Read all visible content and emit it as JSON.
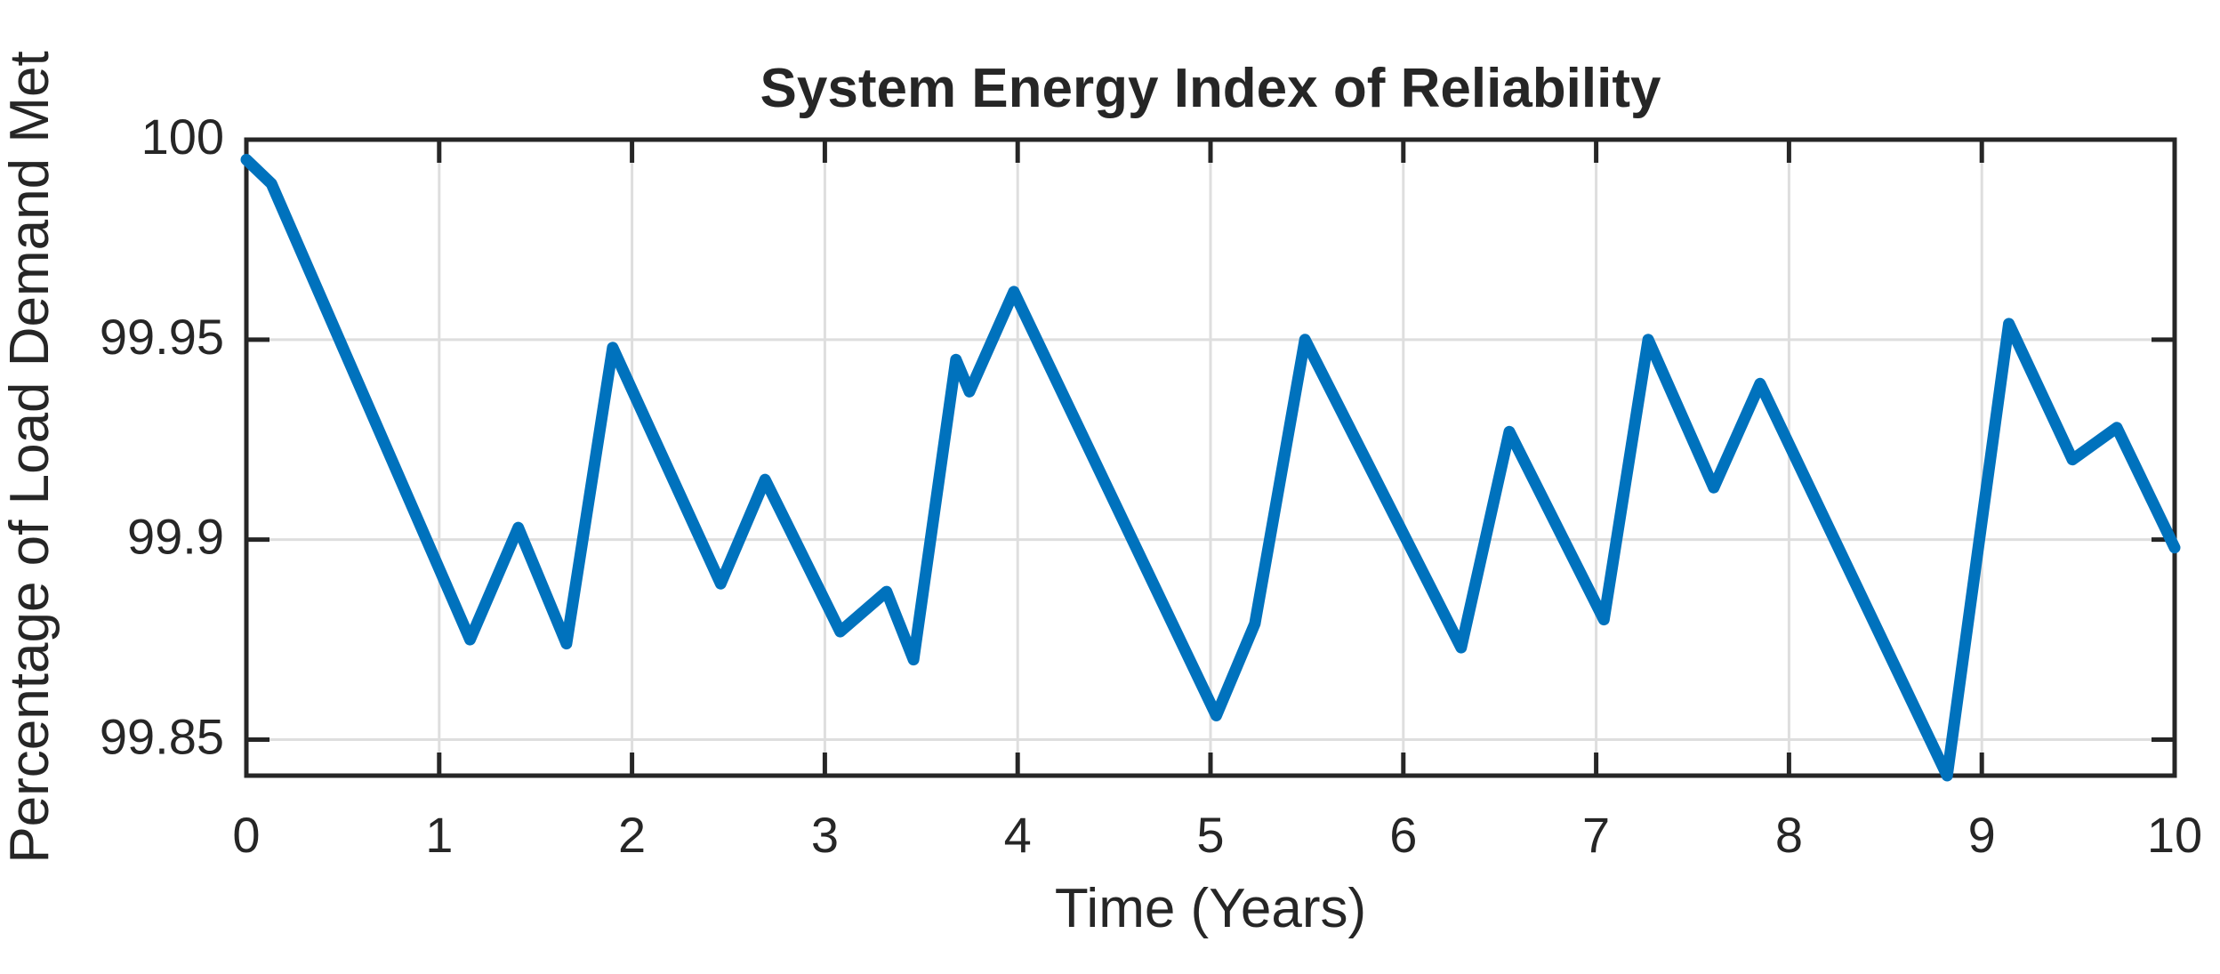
{
  "chart_data": {
    "type": "line",
    "title": "System Energy Index of Reliability",
    "xlabel": "Time (Years)",
    "ylabel": "Percentage of Load Demand Met",
    "xlim": [
      0,
      10
    ],
    "ylim": [
      99.841,
      100
    ],
    "grid": true,
    "legend": "none",
    "xticks": [
      "0",
      "1",
      "2",
      "3",
      "4",
      "5",
      "6",
      "7",
      "8",
      "9",
      "10"
    ],
    "xtick_values": [
      0,
      1,
      2,
      3,
      4,
      5,
      6,
      7,
      8,
      9,
      10
    ],
    "ytick_labels": [
      "100",
      "99.95",
      "99.9",
      "99.85"
    ],
    "ytick_values": [
      100,
      99.95,
      99.9,
      99.85
    ],
    "line_color": "#0072BD",
    "axis_color": "#262626",
    "grid_color": "#DEDEDE",
    "background_color": "#ffffff",
    "series": [
      {
        "name": "System Energy Index of Reliability",
        "x": [
          0.0,
          0.13,
          1.16,
          1.41,
          1.66,
          1.9,
          2.46,
          2.69,
          3.08,
          3.32,
          3.46,
          3.68,
          3.75,
          3.98,
          5.03,
          5.23,
          5.49,
          6.3,
          6.55,
          7.04,
          7.27,
          7.61,
          7.85,
          8.82,
          9.14,
          9.47,
          9.7,
          10.0
        ],
        "y": [
          99.995,
          99.989,
          99.875,
          99.903,
          99.874,
          99.948,
          99.889,
          99.915,
          99.877,
          99.887,
          99.87,
          99.945,
          99.937,
          99.962,
          99.856,
          99.879,
          99.95,
          99.873,
          99.927,
          99.88,
          99.95,
          99.913,
          99.939,
          99.841,
          99.954,
          99.92,
          99.928,
          99.898
        ]
      }
    ]
  }
}
